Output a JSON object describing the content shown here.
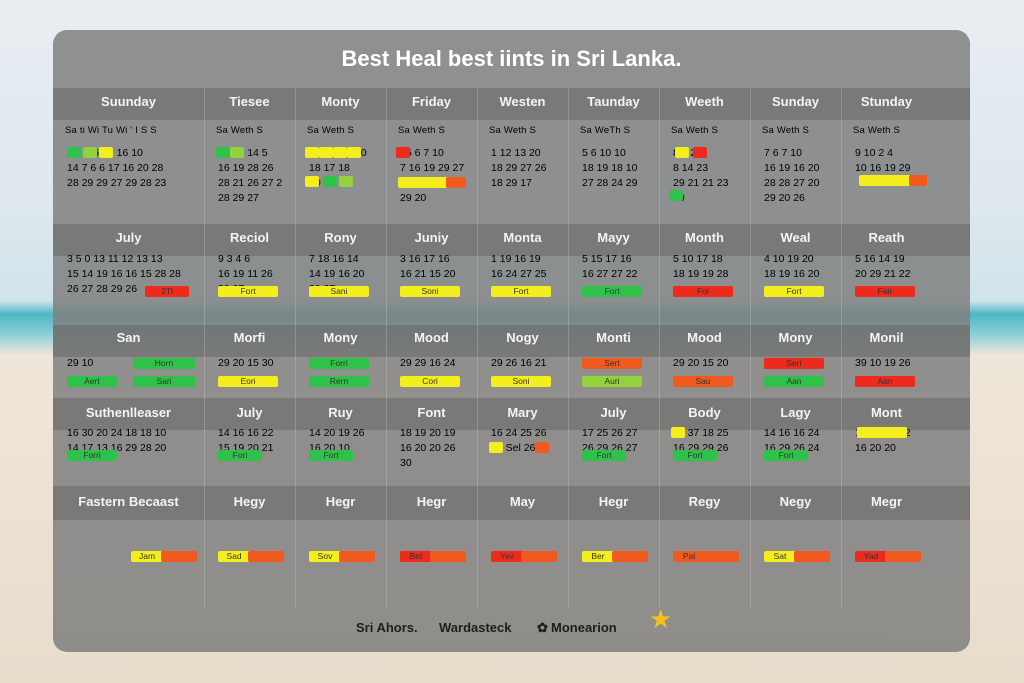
{
  "title": "Best Heal best iints in Sri Lanka.",
  "header_row": [
    "Suunday",
    "Tiesee",
    "Monty",
    "Friday",
    "Westen",
    "Taunday",
    "Weeth",
    "Sunday",
    "Stunday"
  ],
  "week_row": [
    "Sa ti Wi Tu Wi ' I S S",
    "Sa Weth S",
    "Sa Weth S",
    "Sa Weth S",
    "Sa Weth S",
    "Sa WeTh S",
    "Sa Weth S",
    "Sa Weth S",
    "Sa Weth S"
  ],
  "block1_lines": [
    [
      "1      3  7  6 17 16 10",
      "14  7  6  6 17 16 20 28",
      "28 29 29 27 29 28 23"
    ],
    [
      "16  26  14  5",
      "16 19 28 26",
      "28 21 26 27 2",
      "28 29 27"
    ],
    [
      "11 14t 19 20",
      "18 17 18",
      "20"
    ],
    [
      "16  6  7 10",
      "7 16 19 29 27",
      "28 19 20 27",
      "29 20"
    ],
    [
      "1 12 13 20",
      "18 29 27 26",
      "18 29 17"
    ],
    [
      "5  6 10 10",
      "18 19 18 10",
      "27 28 24 29"
    ],
    [
      "8  1   23",
      "8  14   23",
      "29 21 21 23",
      "29"
    ],
    [
      "7  6  7 10",
      "16 19 16 20",
      "28 28 27 20",
      "29 20 26"
    ],
    [
      "9 10  2  4",
      "10 16 19 29"
    ]
  ],
  "labels2": [
    "July",
    "Reciol",
    "Rony",
    "Juniy",
    "Monta",
    "Mayy",
    "Month",
    "Weal",
    "Reath"
  ],
  "block2_lines": [
    [
      "3  5  0 13 11 12 13 13",
      "15 14 19 16 16 15 28 28",
      "26 27 28 29 26"
    ],
    [
      "9  3  4  6",
      "16 19 11 26",
      "29 27"
    ],
    [
      "7 18 16 14",
      "14 19 16 20",
      "29 27"
    ],
    [
      "3 16 17 16",
      "16 21 15 20"
    ],
    [
      "1 19 16 19",
      "16 24 27 25"
    ],
    [
      "5 15 17 16",
      "16 27 27 22"
    ],
    [
      "5 10 17 18",
      "18 19 19 28"
    ],
    [
      "4 10 19 20",
      "18 19 16 20"
    ],
    [
      "5 16 14 19",
      "20 29 21 22"
    ]
  ],
  "block2_bars": [
    "2Tl",
    "Fort",
    "Sani",
    "Soni",
    "Fort",
    "Fort",
    "Foi",
    "Fort",
    "Fair"
  ],
  "labels3": [
    "San",
    "Morfi",
    "Mony",
    "Mood",
    "Nogy",
    "Monti",
    "Mood",
    "Mony",
    "Monil"
  ],
  "row3_a": [
    "Horn",
    "29 20 15 30",
    "Forri",
    "29 29 16 24",
    "29 26 16 21",
    "Sert",
    "29 20 15 20",
    "Sert",
    "39 10 19 26"
  ],
  "row3_b": [
    "Sari",
    "Eori",
    "Rern",
    "Cori",
    "Soni",
    "Auri",
    "Sau",
    "Aan",
    "Aan"
  ],
  "row3_left_a": "29 10",
  "row3_left_b": "Aert",
  "labels4": [
    "Suthenlleaser",
    "July",
    "Ruy",
    "Font",
    "Mary",
    "July",
    "Body",
    "Lagy",
    "Mont"
  ],
  "block4_lines": [
    [
      "16 30 20 24 18 18 10",
      "14 17 13 16 29 28 20"
    ],
    [
      "14 16 16 22",
      "15 19 20 21"
    ],
    [
      "14 20 19 26",
      "16 20 10"
    ],
    [
      "18 19 20 19",
      "16 20 20 26",
      "30"
    ],
    [
      "16 24 25 26",
      "16 Sel 26"
    ],
    [
      "17 25 26 27",
      "26 29 26 27"
    ],
    [
      "16 37 18 25",
      "16 29 29 26"
    ],
    [
      "14 16 16 24",
      "16 29 26 24"
    ],
    [
      "16 39 14 22",
      "16 20 20"
    ]
  ],
  "block4_bars": [
    "Forri",
    "Fori",
    "Fort",
    "",
    "",
    "Fort",
    "Fort",
    "Fort",
    ""
  ],
  "labels5": [
    "Fastern Becaast",
    "Hegy",
    "Hegr",
    "Hegr",
    "May",
    "Hegr",
    "Regy",
    "Negy",
    "Megr"
  ],
  "block5_bars": [
    "Jam",
    "Sad",
    "Sov",
    "Bet",
    "Yev",
    "Ber",
    "Pal",
    "Sat",
    "Yad"
  ],
  "footer": {
    "brand1": "Sri Ahors.",
    "brand2": "Wardasteck",
    "brand3": "Monearion"
  },
  "colors": {
    "green": "#2ec24a",
    "yellow": "#f4ee1c",
    "red": "#ee2a1c",
    "orange": "#f05a1e",
    "panel": "#808080"
  }
}
